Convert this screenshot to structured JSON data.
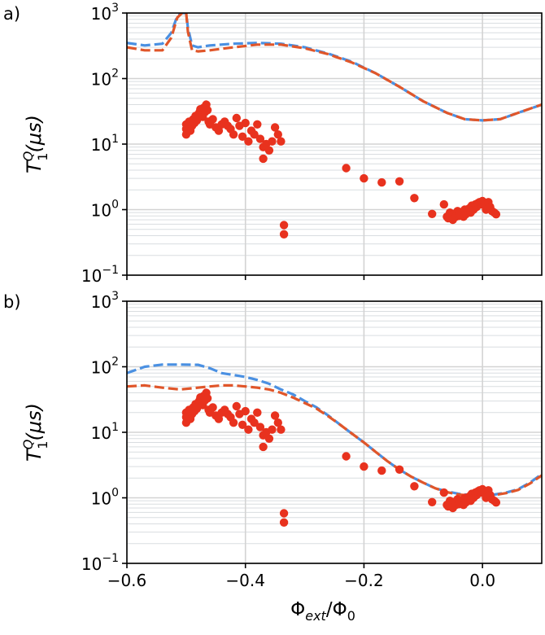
{
  "chart_data": [
    {
      "type": "scatter",
      "panel_label": "a)",
      "xlabel_base": "Φ",
      "xlabel_sub1": "ext",
      "xlabel_mid": "/Φ",
      "xlabel_sub2": "0",
      "ylabel_base": "T",
      "ylabel_sup": "Q",
      "ylabel_sub": "1",
      "ylabel_unit": "(μs)",
      "xlim": [
        -0.6,
        0.1
      ],
      "ylim": [
        0.1,
        1000
      ],
      "yscale": "log",
      "grid": true,
      "x_ticks": [
        -0.6,
        -0.4,
        -0.2,
        0.0
      ],
      "x_tick_labels": [
        "−0.6",
        "−0.4",
        "−0.2",
        "0.0"
      ],
      "y_ticks": [
        {
          "base": "10",
          "exp": "3",
          "value": 1000
        },
        {
          "base": "10",
          "exp": "2",
          "value": 100
        },
        {
          "base": "10",
          "exp": "1",
          "value": 10
        },
        {
          "base": "10",
          "exp": "0",
          "value": 1
        },
        {
          "base": "10",
          "exp": "−1",
          "value": 0.1
        }
      ],
      "series": [
        {
          "name": "theory-blue",
          "style": "dashed",
          "color": "#4a90e2",
          "x": [
            -0.6,
            -0.57,
            -0.54,
            -0.525,
            -0.515,
            -0.507,
            -0.502,
            -0.5,
            -0.497,
            -0.49,
            -0.48,
            -0.46,
            -0.42,
            -0.38,
            -0.34,
            -0.3,
            -0.26,
            -0.22,
            -0.18,
            -0.14,
            -0.1,
            -0.06,
            -0.03,
            0.0,
            0.03,
            0.06,
            0.1
          ],
          "y": [
            350,
            320,
            340,
            500,
            900,
            1000,
            1000,
            1000,
            600,
            320,
            300,
            320,
            340,
            350,
            340,
            300,
            240,
            180,
            120,
            75,
            45,
            30,
            24,
            23,
            24,
            30,
            40
          ]
        },
        {
          "name": "theory-orange",
          "style": "dashed",
          "color": "#e0562a",
          "x": [
            -0.6,
            -0.57,
            -0.54,
            -0.525,
            -0.515,
            -0.507,
            -0.502,
            -0.5,
            -0.497,
            -0.49,
            -0.48,
            -0.46,
            -0.42,
            -0.38,
            -0.34,
            -0.3,
            -0.26,
            -0.22,
            -0.18,
            -0.14,
            -0.1,
            -0.06,
            -0.03,
            0.0,
            0.03,
            0.06,
            0.1
          ],
          "y": [
            300,
            270,
            270,
            420,
            850,
            1000,
            1000,
            1000,
            520,
            270,
            260,
            270,
            300,
            330,
            330,
            290,
            235,
            175,
            120,
            75,
            45,
            30,
            24,
            23,
            24,
            30,
            40
          ]
        },
        {
          "name": "measured",
          "style": "markers",
          "color": "#e8321e",
          "x": [
            -0.5,
            -0.5,
            -0.5,
            -0.497,
            -0.495,
            -0.493,
            -0.49,
            -0.488,
            -0.486,
            -0.484,
            -0.482,
            -0.48,
            -0.478,
            -0.476,
            -0.474,
            -0.472,
            -0.47,
            -0.468,
            -0.466,
            -0.464,
            -0.462,
            -0.46,
            -0.455,
            -0.45,
            -0.445,
            -0.44,
            -0.435,
            -0.43,
            -0.425,
            -0.42,
            -0.415,
            -0.41,
            -0.405,
            -0.4,
            -0.395,
            -0.39,
            -0.385,
            -0.38,
            -0.375,
            -0.37,
            -0.37,
            -0.365,
            -0.36,
            -0.355,
            -0.35,
            -0.345,
            -0.34,
            -0.335,
            -0.335,
            -0.23,
            -0.2,
            -0.17,
            -0.14,
            -0.115,
            -0.085,
            -0.065,
            -0.06,
            -0.058,
            -0.055,
            -0.052,
            -0.05,
            -0.048,
            -0.045,
            -0.042,
            -0.04,
            -0.038,
            -0.035,
            -0.032,
            -0.03,
            -0.028,
            -0.025,
            -0.022,
            -0.02,
            -0.018,
            -0.015,
            -0.012,
            -0.01,
            -0.008,
            -0.005,
            -0.002,
            0.0,
            0.003,
            0.006,
            0.01,
            0.013,
            0.016,
            0.02,
            0.023
          ],
          "y": [
            14,
            17,
            20,
            18,
            22,
            16,
            19,
            24,
            21,
            27,
            23,
            25,
            30,
            34,
            28,
            26,
            36,
            31,
            40,
            33,
            22,
            20,
            24,
            18,
            16,
            20,
            22,
            19,
            17,
            14,
            25,
            19,
            13,
            21,
            11,
            16,
            14,
            20,
            12,
            9,
            6,
            10,
            8,
            11,
            18,
            14,
            11,
            0.58,
            0.42,
            4.3,
            3.0,
            2.6,
            2.7,
            1.5,
            0.86,
            1.2,
            0.78,
            0.74,
            0.9,
            0.82,
            0.7,
            0.86,
            0.78,
            0.95,
            0.8,
            0.88,
            0.92,
            0.78,
            1.0,
            0.85,
            0.95,
            1.05,
            0.9,
            1.15,
            1.0,
            1.2,
            1.1,
            1.25,
            1.3,
            1.2,
            1.35,
            1.2,
            1.0,
            1.3,
            1.1,
            0.95,
            0.9,
            0.85
          ]
        }
      ]
    },
    {
      "type": "scatter",
      "panel_label": "b)",
      "xlabel_base": "Φ",
      "xlabel_sub1": "ext",
      "xlabel_mid": "/Φ",
      "xlabel_sub2": "0",
      "ylabel_base": "T",
      "ylabel_sup": "Q",
      "ylabel_sub": "1",
      "ylabel_unit": "(μs)",
      "xlim": [
        -0.6,
        0.1
      ],
      "ylim": [
        0.1,
        1000
      ],
      "yscale": "log",
      "grid": true,
      "x_ticks": [
        -0.6,
        -0.4,
        -0.2,
        0.0
      ],
      "x_tick_labels": [
        "−0.6",
        "−0.4",
        "−0.2",
        "0.0"
      ],
      "y_ticks": [
        {
          "base": "10",
          "exp": "3",
          "value": 1000
        },
        {
          "base": "10",
          "exp": "2",
          "value": 100
        },
        {
          "base": "10",
          "exp": "1",
          "value": 10
        },
        {
          "base": "10",
          "exp": "0",
          "value": 1
        },
        {
          "base": "10",
          "exp": "−1",
          "value": 0.1
        }
      ],
      "series": [
        {
          "name": "theory-blue",
          "style": "dashed",
          "color": "#4a90e2",
          "x": [
            -0.6,
            -0.57,
            -0.54,
            -0.51,
            -0.48,
            -0.46,
            -0.44,
            -0.42,
            -0.4,
            -0.38,
            -0.36,
            -0.34,
            -0.32,
            -0.3,
            -0.28,
            -0.26,
            -0.24,
            -0.22,
            -0.2,
            -0.18,
            -0.16,
            -0.14,
            -0.12,
            -0.1,
            -0.08,
            -0.06,
            -0.04,
            -0.02,
            0.0,
            0.02,
            0.04,
            0.06,
            0.08,
            0.1
          ],
          "y": [
            80,
            100,
            108,
            108,
            107,
            95,
            80,
            75,
            70,
            63,
            55,
            45,
            38,
            30,
            24,
            18,
            13,
            9.5,
            7,
            5,
            3.6,
            2.7,
            2.1,
            1.7,
            1.4,
            1.25,
            1.15,
            1.1,
            1.1,
            1.12,
            1.2,
            1.35,
            1.7,
            2.3
          ]
        },
        {
          "name": "theory-orange",
          "style": "dashed",
          "color": "#e0562a",
          "x": [
            -0.6,
            -0.57,
            -0.54,
            -0.51,
            -0.48,
            -0.46,
            -0.44,
            -0.42,
            -0.4,
            -0.38,
            -0.36,
            -0.34,
            -0.32,
            -0.3,
            -0.28,
            -0.26,
            -0.24,
            -0.22,
            -0.2,
            -0.18,
            -0.16,
            -0.14,
            -0.12,
            -0.1,
            -0.08,
            -0.06,
            -0.04,
            -0.02,
            0.0,
            0.02,
            0.04,
            0.06,
            0.08,
            0.1
          ],
          "y": [
            50,
            52,
            48,
            45,
            48,
            50,
            52,
            52,
            50,
            48,
            45,
            40,
            34,
            28,
            23,
            17.5,
            13,
            9.5,
            7,
            5,
            3.6,
            2.7,
            2.1,
            1.7,
            1.4,
            1.22,
            1.12,
            1.08,
            1.08,
            1.1,
            1.18,
            1.32,
            1.65,
            2.2
          ]
        },
        {
          "name": "measured",
          "style": "markers",
          "color": "#e8321e",
          "x": [
            -0.5,
            -0.5,
            -0.5,
            -0.497,
            -0.495,
            -0.493,
            -0.49,
            -0.488,
            -0.486,
            -0.484,
            -0.482,
            -0.48,
            -0.478,
            -0.476,
            -0.474,
            -0.472,
            -0.47,
            -0.468,
            -0.466,
            -0.464,
            -0.462,
            -0.46,
            -0.455,
            -0.45,
            -0.445,
            -0.44,
            -0.435,
            -0.43,
            -0.425,
            -0.42,
            -0.415,
            -0.41,
            -0.405,
            -0.4,
            -0.395,
            -0.39,
            -0.385,
            -0.38,
            -0.375,
            -0.37,
            -0.37,
            -0.365,
            -0.36,
            -0.355,
            -0.35,
            -0.345,
            -0.34,
            -0.335,
            -0.335,
            -0.23,
            -0.2,
            -0.17,
            -0.14,
            -0.115,
            -0.085,
            -0.065,
            -0.06,
            -0.058,
            -0.055,
            -0.052,
            -0.05,
            -0.048,
            -0.045,
            -0.042,
            -0.04,
            -0.038,
            -0.035,
            -0.032,
            -0.03,
            -0.028,
            -0.025,
            -0.022,
            -0.02,
            -0.018,
            -0.015,
            -0.012,
            -0.01,
            -0.008,
            -0.005,
            -0.002,
            0.0,
            0.003,
            0.006,
            0.01,
            0.013,
            0.016,
            0.02,
            0.023
          ],
          "y": [
            14,
            17,
            20,
            18,
            22,
            16,
            19,
            24,
            21,
            27,
            23,
            25,
            30,
            34,
            28,
            26,
            36,
            31,
            40,
            33,
            22,
            20,
            24,
            18,
            16,
            20,
            22,
            19,
            17,
            14,
            25,
            19,
            13,
            21,
            11,
            16,
            14,
            20,
            12,
            9,
            6,
            10,
            8,
            11,
            18,
            14,
            11,
            0.58,
            0.42,
            4.3,
            3.0,
            2.6,
            2.7,
            1.5,
            0.86,
            1.2,
            0.78,
            0.74,
            0.9,
            0.82,
            0.7,
            0.86,
            0.78,
            0.95,
            0.8,
            0.88,
            0.92,
            0.78,
            1.0,
            0.85,
            0.95,
            1.05,
            0.9,
            1.15,
            1.0,
            1.2,
            1.1,
            1.25,
            1.3,
            1.2,
            1.35,
            1.2,
            1.0,
            1.3,
            1.1,
            0.95,
            0.9,
            0.85
          ]
        }
      ]
    }
  ]
}
